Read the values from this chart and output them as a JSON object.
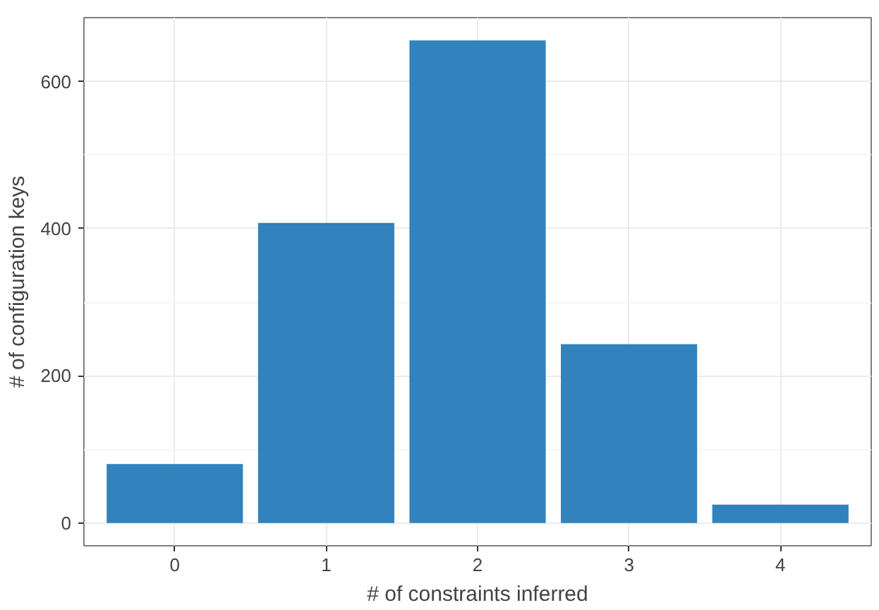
{
  "chart_data": {
    "type": "bar",
    "xlabel": "# of constraints inferred",
    "ylabel": "# of configuration keys",
    "categories": [
      "0",
      "1",
      "2",
      "3",
      "4"
    ],
    "values": [
      80,
      408,
      656,
      243,
      25
    ],
    "color": "#3182bd",
    "ylim": [
      -31,
      687
    ],
    "yticks": [
      0,
      200,
      400,
      600
    ],
    "grid": true
  }
}
